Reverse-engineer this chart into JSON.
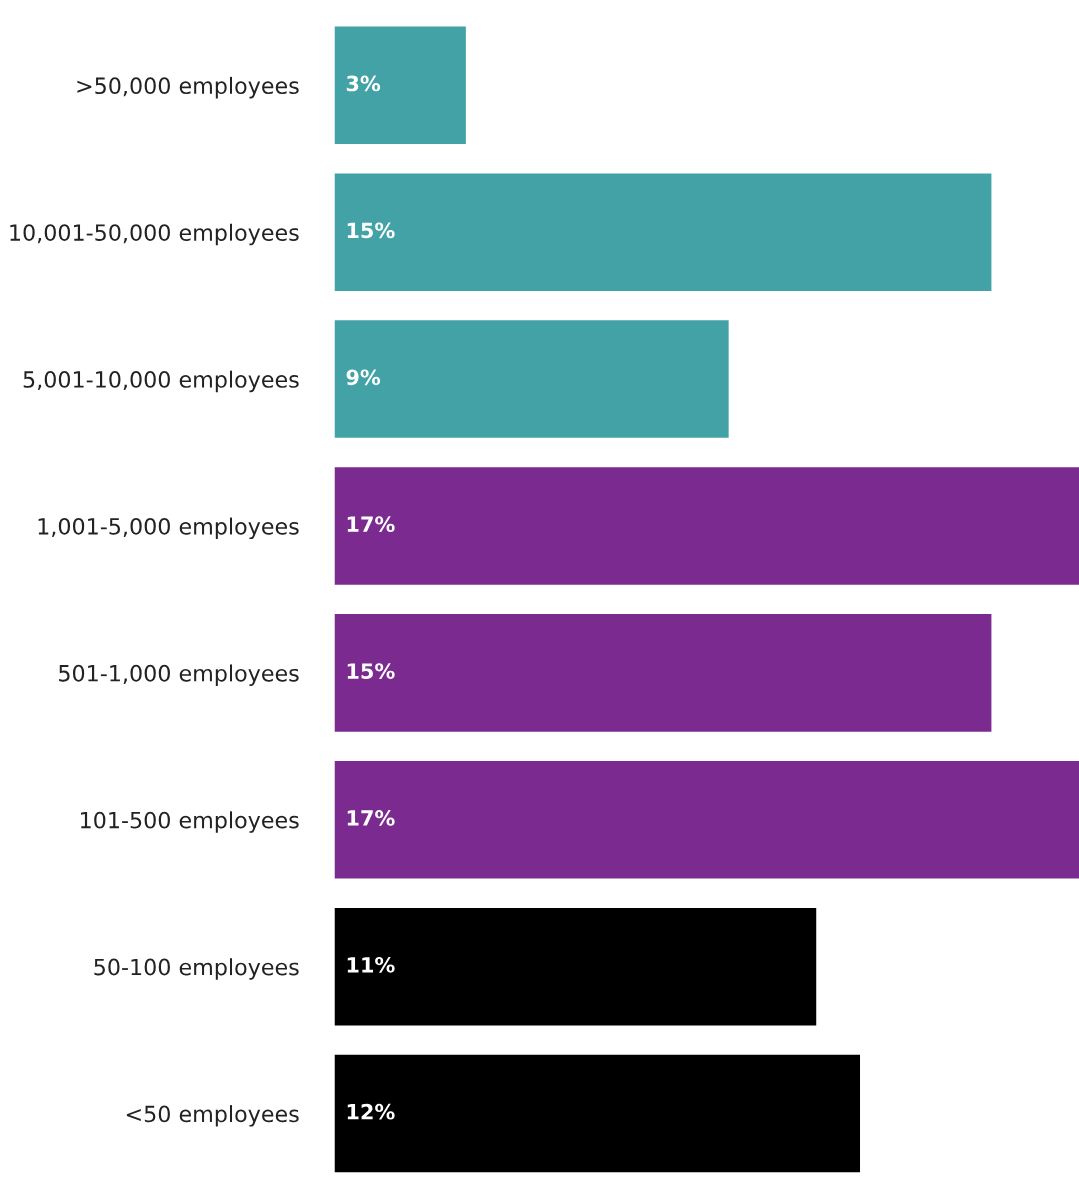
{
  "chart_data": {
    "type": "bar",
    "orientation": "horizontal",
    "categories": [
      ">50,000 employees",
      "10,001-50,000 employees",
      "5,001-10,000 employees",
      "1,001-5,000 employees",
      "501-1,000 employees",
      "101-500 employees",
      "50-100 employees",
      "<50 employees"
    ],
    "values": [
      3,
      15,
      9,
      17,
      15,
      17,
      11,
      12
    ],
    "colors": [
      "#42a2a5",
      "#42a2a5",
      "#42a2a5",
      "#7b2b8f",
      "#7b2b8f",
      "#7b2b8f",
      "#000000",
      "#000000"
    ],
    "value_labels": [
      "3%",
      "15%",
      "9%",
      "17%",
      "15%",
      "17%",
      "11%",
      "12%"
    ],
    "grid": false,
    "legend": false,
    "tick_labels": "y"
  }
}
